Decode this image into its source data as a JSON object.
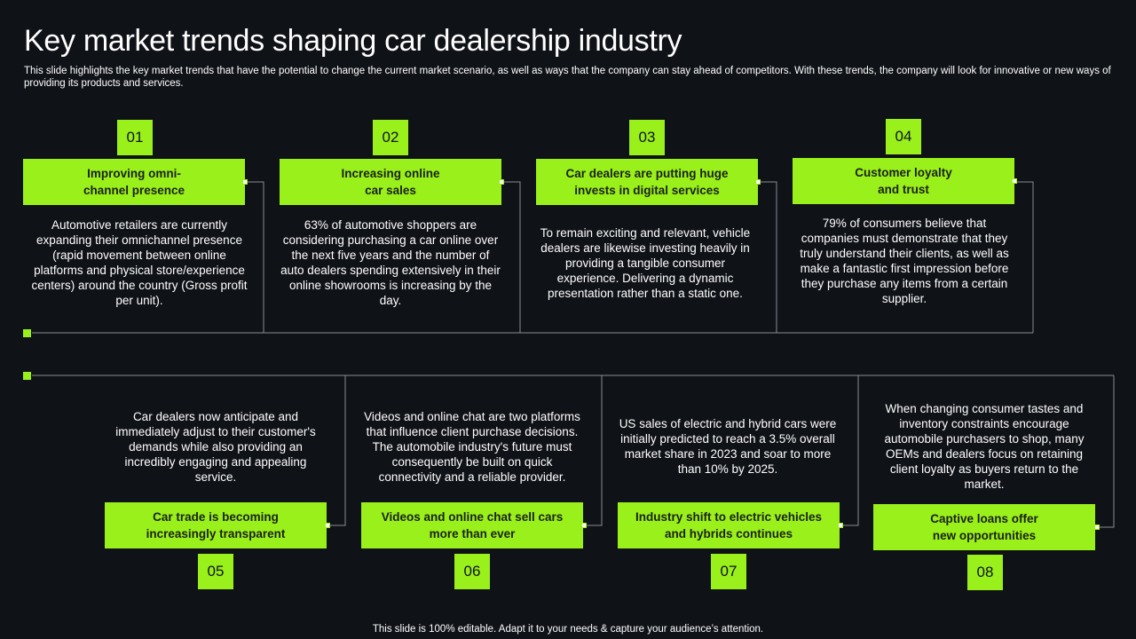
{
  "title": "Key market trends shaping car dealership industry",
  "subtitle": "This slide highlights the key market trends that have the potential to change the current market scenario, as well as ways that the company can stay ahead of competitors. With these trends, the company will look for innovative or new ways of providing its products and services.",
  "accent_color": "#9af01a",
  "background_color": "#0f1217",
  "trends": [
    {
      "number": "01",
      "heading": "Improving omni-\nchannel presence",
      "text": "Automotive retailers are currently expanding their omnichannel presence (rapid movement between online platforms and physical store/experience centers) around the country (Gross profit per unit)."
    },
    {
      "number": "02",
      "heading": "Increasing online\ncar sales",
      "text": "63% of automotive shoppers are considering purchasing a car online over the next five years and the number of auto dealers spending extensively in their online showrooms is increasing by the day."
    },
    {
      "number": "03",
      "heading": "Car dealers are putting huge invests in digital services",
      "text": "To remain exciting and relevant, vehicle dealers are likewise investing heavily in providing a tangible consumer experience. Delivering a dynamic presentation rather than a static one."
    },
    {
      "number": "04",
      "heading": "Customer loyalty\nand trust",
      "text": "79% of consumers believe that companies must demonstrate that they truly understand their clients, as well as make a fantastic first impression before they purchase any items from a certain supplier."
    },
    {
      "number": "05",
      "heading": "Car trade is becoming increasingly transparent",
      "text": "Car dealers now anticipate and immediately adjust to their customer's demands while also providing an incredibly engaging and appealing service."
    },
    {
      "number": "06",
      "heading": "Videos and online chat sell cars more than ever",
      "text": "Videos and online chat are two platforms that influence client purchase decisions. The automobile industry's future must consequently be built on quick connectivity and a reliable provider."
    },
    {
      "number": "07",
      "heading": "Industry shift to electric vehicles and hybrids continues",
      "text": "US sales of electric and hybrid cars were initially predicted to reach a 3.5% overall market share in 2023 and soar to more than 10% by 2025."
    },
    {
      "number": "08",
      "heading": "Captive loans offer\nnew opportunities",
      "text": "When changing consumer tastes and inventory constraints encourage automobile purchasers to shop, many OEMs and dealers focus on retaining client loyalty as buyers return to the market."
    }
  ],
  "footer": "This slide is 100% editable. Adapt it to your needs & capture your audience’s attention."
}
